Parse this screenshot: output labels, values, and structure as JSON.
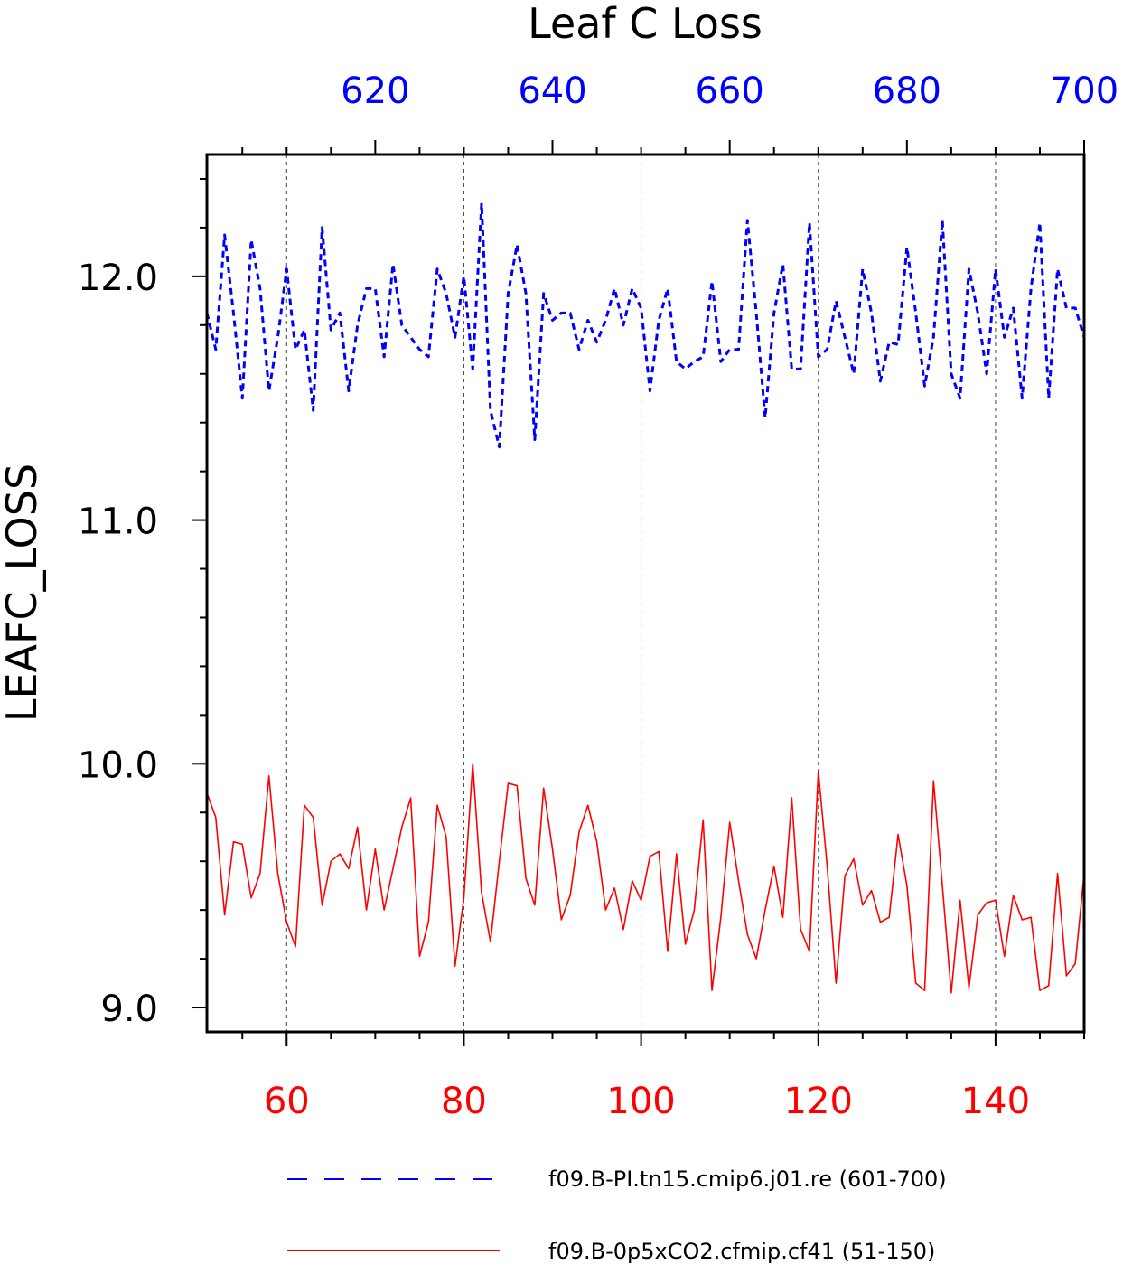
{
  "chart_data": {
    "type": "line",
    "title": "Leaf C Loss",
    "ylabel": "LEAFC_LOSS",
    "ylim": [
      8.9,
      12.5
    ],
    "y_ticks": [
      "9.0",
      "10.0",
      "11.0",
      "12.0"
    ],
    "grid": "vertical dashed",
    "x_bottom": {
      "range": [
        51,
        150
      ],
      "ticks": [
        "60",
        "80",
        "100",
        "120",
        "140"
      ],
      "color": "#ff0000"
    },
    "x_top": {
      "range": [
        601,
        700
      ],
      "ticks": [
        "620",
        "640",
        "660",
        "680",
        "700"
      ],
      "color": "#0000ff"
    },
    "series": [
      {
        "name": "f09.B-PI.tn15.cmip6.j01.re (601-700)",
        "axis": "top",
        "color": "#0000ff",
        "style": "dashed",
        "x_start": 601,
        "values": [
          11.85,
          11.7,
          12.17,
          11.85,
          11.5,
          12.15,
          11.95,
          11.53,
          11.75,
          12.03,
          11.7,
          11.78,
          11.45,
          12.2,
          11.78,
          11.85,
          11.53,
          11.8,
          11.95,
          11.95,
          11.67,
          12.05,
          11.8,
          11.75,
          11.7,
          11.67,
          12.03,
          11.93,
          11.75,
          12.0,
          11.62,
          12.3,
          11.45,
          11.3,
          11.93,
          12.13,
          11.93,
          11.33,
          11.93,
          11.82,
          11.85,
          11.85,
          11.7,
          11.82,
          11.73,
          11.82,
          11.95,
          11.8,
          11.95,
          11.87,
          11.53,
          11.82,
          11.95,
          11.65,
          11.62,
          11.65,
          11.67,
          11.98,
          11.65,
          11.7,
          11.7,
          12.23,
          11.85,
          11.42,
          11.85,
          12.05,
          11.62,
          11.62,
          12.22,
          11.67,
          11.7,
          11.9,
          11.75,
          11.6,
          12.03,
          11.85,
          11.57,
          11.73,
          11.72,
          12.12,
          11.85,
          11.55,
          11.75,
          12.23,
          11.6,
          11.5,
          12.03,
          11.85,
          11.6,
          12.03,
          11.75,
          11.87,
          11.5,
          11.95,
          12.22,
          11.5,
          12.03,
          11.87,
          11.87,
          11.75
        ]
      },
      {
        "name": "f09.B-0p5xCO2.cfmip.cf41 (51-150)",
        "axis": "bottom",
        "color": "#ff0000",
        "style": "solid",
        "x_start": 51,
        "values": [
          9.88,
          9.78,
          9.38,
          9.68,
          9.67,
          9.45,
          9.55,
          9.95,
          9.55,
          9.35,
          9.25,
          9.83,
          9.78,
          9.42,
          9.6,
          9.63,
          9.57,
          9.74,
          9.4,
          9.65,
          9.4,
          9.57,
          9.74,
          9.86,
          9.21,
          9.35,
          9.83,
          9.7,
          9.17,
          9.45,
          10.0,
          9.47,
          9.27,
          9.6,
          9.92,
          9.91,
          9.53,
          9.42,
          9.9,
          9.65,
          9.36,
          9.46,
          9.72,
          9.83,
          9.68,
          9.4,
          9.49,
          9.32,
          9.52,
          9.44,
          9.62,
          9.64,
          9.23,
          9.63,
          9.26,
          9.4,
          9.77,
          9.07,
          9.37,
          9.76,
          9.52,
          9.3,
          9.2,
          9.4,
          9.58,
          9.37,
          9.86,
          9.32,
          9.23,
          9.97,
          9.58,
          9.1,
          9.54,
          9.61,
          9.42,
          9.48,
          9.35,
          9.37,
          9.71,
          9.5,
          9.1,
          9.07,
          9.93,
          9.5,
          9.06,
          9.44,
          9.08,
          9.38,
          9.43,
          9.44,
          9.21,
          9.46,
          9.36,
          9.37,
          9.07,
          9.09,
          9.55,
          9.13,
          9.18,
          9.55
        ]
      }
    ]
  }
}
